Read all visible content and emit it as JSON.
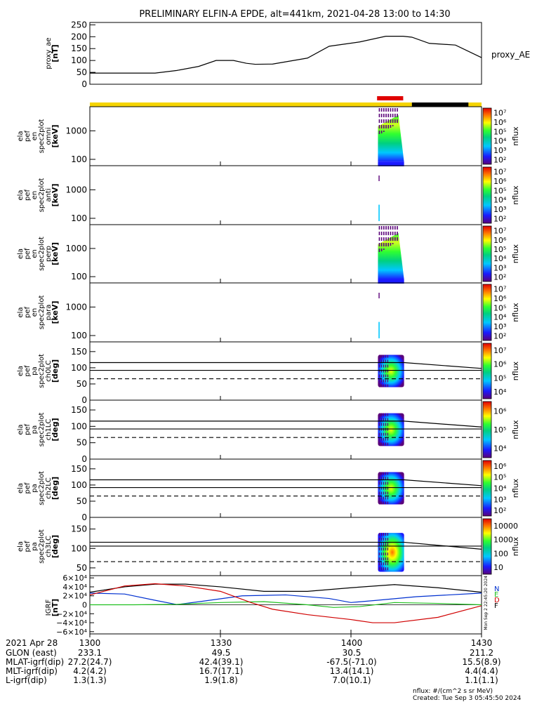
{
  "title": "PRELIMINARY ELFIN-A EPDE, alt=441km, 2021-04-28 13:00 to 14:30",
  "colors": {
    "status_yellow": "#f5d400",
    "status_red": "#e00000",
    "status_black": "#000000",
    "line_black": "#000000",
    "line_blue": "#0030d0",
    "line_green": "#20c020",
    "line_red": "#d00000"
  },
  "chart_data": [
    {
      "type": "line",
      "name": "proxy_ae",
      "ylabel_lines": [
        "proxy_ae",
        "[nT]"
      ],
      "right_label": "proxy_AE",
      "ylim": [
        0,
        260
      ],
      "yticks": [
        "0",
        "50",
        "100",
        "150",
        "200",
        "250"
      ],
      "ytick_values": [
        0,
        50,
        100,
        150,
        200,
        250
      ],
      "x_minutes": [
        0,
        15,
        20,
        25,
        29,
        33,
        36,
        38,
        42,
        50,
        55,
        62,
        68,
        72,
        74,
        78,
        84,
        90
      ],
      "values": [
        47,
        47,
        58,
        75,
        100,
        100,
        88,
        84,
        85,
        110,
        160,
        178,
        202,
        202,
        198,
        172,
        165,
        112
      ]
    },
    {
      "type": "status_bar",
      "segments": [
        {
          "from": 0,
          "to": 74,
          "color": "yellow"
        },
        {
          "from": 74,
          "to": 87,
          "color": "black"
        },
        {
          "from": 87,
          "to": 90,
          "color": "yellow"
        }
      ],
      "red_marker": {
        "from": 66,
        "to": 72
      }
    },
    {
      "type": "heatmap",
      "name": "ela_pef_en_spec2plot_omni",
      "ylabel_lines": [
        "ela",
        "pef",
        "en",
        "spec2plot",
        "omni",
        "[keV]"
      ],
      "ylog": true,
      "yticks": [
        "100",
        "1000"
      ],
      "ytick_values": [
        100,
        1000
      ],
      "ylim": [
        60,
        7000
      ],
      "data_x_range": [
        66.2,
        72.2
      ],
      "colorbar": {
        "label": "nflux",
        "ticks": [
          "10²",
          "10³",
          "10⁴",
          "10⁵",
          "10⁶",
          "10⁷"
        ]
      }
    },
    {
      "type": "heatmap",
      "name": "ela_pef_en_spec2plot_anti",
      "ylabel_lines": [
        "ela",
        "pef",
        "en",
        "spec2plot",
        "anti",
        "[keV]"
      ],
      "ylog": true,
      "yticks": [
        "100",
        "1000"
      ],
      "ytick_values": [
        100,
        1000
      ],
      "ylim": [
        60,
        7000
      ],
      "data_x_range": [
        66.3,
        66.6
      ],
      "colorbar": {
        "label": "nflux",
        "ticks": [
          "10²",
          "10³",
          "10⁴",
          "10⁵",
          "10⁶",
          "10⁷"
        ]
      }
    },
    {
      "type": "heatmap",
      "name": "ela_pef_en_spec2plot_perp",
      "ylabel_lines": [
        "ela",
        "pef",
        "en",
        "spec2plot",
        "perp",
        "[keV]"
      ],
      "ylog": true,
      "yticks": [
        "100",
        "1000"
      ],
      "ytick_values": [
        100,
        1000
      ],
      "ylim": [
        60,
        7000
      ],
      "data_x_range": [
        66.2,
        72.2
      ],
      "colorbar": {
        "label": "nflux",
        "ticks": [
          "10²",
          "10³",
          "10⁴",
          "10⁵",
          "10⁶",
          "10⁷"
        ]
      }
    },
    {
      "type": "heatmap",
      "name": "ela_pef_en_spec2plot_para",
      "ylabel_lines": [
        "ela",
        "pef",
        "en",
        "spec2plot",
        "para",
        "[keV]"
      ],
      "ylog": true,
      "yticks": [
        "100",
        "1000"
      ],
      "ytick_values": [
        100,
        1000
      ],
      "ylim": [
        60,
        7000
      ],
      "data_x_range": [
        66.3,
        66.6
      ],
      "colorbar": {
        "label": "nflux",
        "ticks": [
          "10²",
          "10³",
          "10⁴",
          "10⁵",
          "10⁶",
          "10⁷"
        ]
      }
    },
    {
      "type": "heatmap",
      "name": "ela_pef_pa_spec2plot_ch0LC",
      "ylabel_lines": [
        "ela",
        "pef",
        "pa",
        "spec2plot",
        "ch0LC",
        "[deg]"
      ],
      "ylog": false,
      "yticks": [
        "0",
        "50",
        "100",
        "150"
      ],
      "ytick_values": [
        0,
        50,
        100,
        150
      ],
      "ylim": [
        0,
        180
      ],
      "data_x_range": [
        66.2,
        72.2
      ],
      "lines": {
        "upper": [
          [
            0,
            116
          ],
          [
            72.2,
            116
          ],
          [
            90,
            98
          ]
        ],
        "mid": [
          [
            0,
            92
          ],
          [
            90,
            92
          ]
        ],
        "dashed": [
          [
            0,
            66
          ],
          [
            90,
            66
          ]
        ]
      },
      "colorbar": {
        "label": "nflux",
        "ticks": [
          "10⁴",
          "10⁵",
          "10⁶",
          "10⁷"
        ]
      }
    },
    {
      "type": "heatmap",
      "name": "ela_pef_pa_spec2plot_ch1LC",
      "ylabel_lines": [
        "ela",
        "pef",
        "pa",
        "spec2plot",
        "ch1LC",
        "[deg]"
      ],
      "ylog": false,
      "yticks": [
        "0",
        "50",
        "100",
        "150"
      ],
      "ytick_values": [
        0,
        50,
        100,
        150
      ],
      "ylim": [
        0,
        180
      ],
      "data_x_range": [
        66.2,
        72.2
      ],
      "lines": {
        "upper": [
          [
            0,
            116
          ],
          [
            72.2,
            116
          ],
          [
            90,
            98
          ]
        ],
        "mid": [
          [
            0,
            92
          ],
          [
            90,
            92
          ]
        ],
        "dashed": [
          [
            0,
            66
          ],
          [
            90,
            66
          ]
        ]
      },
      "colorbar": {
        "label": "nflux",
        "ticks": [
          "10⁴",
          "10⁵",
          "10⁶"
        ]
      }
    },
    {
      "type": "heatmap",
      "name": "ela_pef_pa_spec2plot_ch2LC",
      "ylabel_lines": [
        "ela",
        "pef",
        "pa",
        "spec2plot",
        "ch2LC",
        "[deg]"
      ],
      "ylog": false,
      "yticks": [
        "0",
        "50",
        "100",
        "150"
      ],
      "ytick_values": [
        0,
        50,
        100,
        150
      ],
      "ylim": [
        0,
        180
      ],
      "data_x_range": [
        66.2,
        72.2
      ],
      "lines": {
        "upper": [
          [
            0,
            116
          ],
          [
            72.2,
            116
          ],
          [
            90,
            98
          ]
        ],
        "mid": [
          [
            0,
            92
          ],
          [
            90,
            92
          ]
        ],
        "dashed": [
          [
            0,
            66
          ],
          [
            90,
            66
          ]
        ]
      },
      "colorbar": {
        "label": "nflux",
        "ticks": [
          "10²",
          "10³",
          "10⁴",
          "10⁵",
          "10⁶"
        ]
      }
    },
    {
      "type": "heatmap",
      "name": "ela_pef_pa_spec2plot_ch3LC",
      "ylabel_lines": [
        "ela",
        "pef",
        "pa",
        "spec2plot",
        "ch3LC",
        "[deg]"
      ],
      "ylog": false,
      "yticks": [
        "50",
        "100",
        "150"
      ],
      "ytick_values": [
        50,
        100,
        150
      ],
      "ylim": [
        30,
        180
      ],
      "data_x_range": [
        66.2,
        72.2
      ],
      "lines": {
        "upper": [
          [
            0,
            116
          ],
          [
            72.2,
            116
          ],
          [
            90,
            98
          ]
        ],
        "mid": [
          [
            0,
            106
          ],
          [
            90,
            106
          ]
        ],
        "dashed": [
          [
            0,
            66
          ],
          [
            90,
            66
          ]
        ]
      },
      "colorbar": {
        "label": "nflux",
        "ticks": [
          "10",
          "100",
          "1000",
          "10000"
        ]
      }
    },
    {
      "type": "line",
      "name": "IGRF",
      "ylabel_lines": [
        "IGRF",
        "[nT]"
      ],
      "ylim": [
        -65000,
        65000
      ],
      "yticks": [
        "−6×10⁴",
        "−4×10⁴",
        "−2×10⁴",
        "0",
        "2×10⁴",
        "4×10⁴",
        "6×10⁴"
      ],
      "ytick_values": [
        -60000,
        -40000,
        -20000,
        0,
        20000,
        40000,
        60000
      ],
      "legend": [
        "N",
        "E",
        "D",
        "F"
      ],
      "side_note": "Mon Sep 2 22:45:20 2024",
      "series": [
        {
          "name": "F",
          "color": "black",
          "x_minutes": [
            0,
            8,
            15,
            22,
            30,
            40,
            50,
            60,
            70,
            80,
            90
          ],
          "values": [
            28000,
            40000,
            46000,
            46000,
            40000,
            30000,
            30000,
            38000,
            45000,
            38000,
            28000
          ]
        },
        {
          "name": "N",
          "color": "blue",
          "x_minutes": [
            0,
            8,
            15,
            20,
            26,
            35,
            45,
            55,
            60,
            66,
            75,
            90
          ],
          "values": [
            26000,
            24000,
            10000,
            500,
            8000,
            20000,
            22000,
            14000,
            5000,
            10000,
            18000,
            26000
          ]
        },
        {
          "name": "E",
          "color": "green",
          "x_minutes": [
            0,
            10,
            20,
            30,
            40,
            50,
            56,
            62,
            70,
            80,
            90
          ],
          "values": [
            0,
            0,
            1000,
            5000,
            7000,
            0,
            -6000,
            -4000,
            5000,
            3000,
            0
          ]
        },
        {
          "name": "D",
          "color": "red",
          "x_minutes": [
            0,
            8,
            15,
            22,
            30,
            37,
            42,
            50,
            60,
            65,
            70,
            80,
            90
          ],
          "values": [
            22000,
            42000,
            47000,
            42000,
            30000,
            5000,
            -10000,
            -22000,
            -33000,
            -40000,
            -40000,
            -28000,
            -2000
          ]
        }
      ]
    }
  ],
  "time_axis": {
    "range_minutes": [
      0,
      90
    ],
    "ticks": [
      {
        "minute": 0,
        "label": "1300"
      },
      {
        "minute": 30,
        "label": "1330"
      },
      {
        "minute": 60,
        "label": "1400"
      },
      {
        "minute": 90,
        "label": "1430"
      }
    ]
  },
  "ephemeris": {
    "rows": [
      {
        "label": "2021 Apr 28",
        "values": [
          "1300",
          "1330",
          "1400",
          "1430"
        ]
      },
      {
        "label": "GLON (east)",
        "values": [
          "233.1",
          "49.5",
          "30.5",
          "211.2"
        ]
      },
      {
        "label": "MLAT-igrf(dip)",
        "values": [
          "27.2(24.7)",
          "42.4(39.1)",
          "-67.5(-71.0)",
          "15.5(8.9)"
        ]
      },
      {
        "label": "MLT-igrf(dip)",
        "values": [
          "4.2(4.2)",
          "16.7(17.1)",
          "13.4(14.1)",
          "4.4(4.4)"
        ]
      },
      {
        "label": "L-igrf(dip)",
        "values": [
          "1.3(1.3)",
          "1.9(1.8)",
          "7.0(10.1)",
          "1.1(1.1)"
        ]
      }
    ]
  },
  "footer": {
    "units": "nflux: #/(cm^2 s sr MeV)",
    "created": "Created: Tue Sep  3 05:45:50 2024"
  }
}
